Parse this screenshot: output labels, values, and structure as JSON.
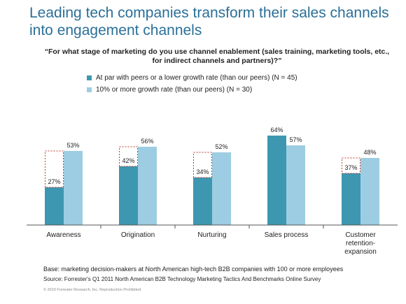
{
  "title": "Leading tech companies transform their sales channels into engagement channels",
  "question": "“For what stage of marketing do you use channel enablement (sales training, marketing tools, etc., for indirect channels and partners)?”",
  "legend": [
    {
      "label": "At par with peers or a lower growth rate (than our peers) (N = 45)",
      "color": "#3d97b1"
    },
    {
      "label": "10% or more growth rate (than our peers) (N = 30)",
      "color": "#9dcde2"
    }
  ],
  "chart_data": {
    "type": "bar",
    "categories": [
      "Awareness",
      "Origination",
      "Nurturing",
      "Sales process",
      "Customer retention-expansion"
    ],
    "category_lines": [
      [
        "Awareness"
      ],
      [
        "Origination"
      ],
      [
        "Nurturing"
      ],
      [
        "Sales process"
      ],
      [
        "Customer",
        "retention-",
        "expansion"
      ]
    ],
    "series": [
      {
        "name": "At par with peers or a lower growth rate (than our peers) (N = 45)",
        "values": [
          27,
          42,
          34,
          64,
          37
        ],
        "labels": [
          "27%",
          "42%",
          "34%",
          "64%",
          "37%"
        ],
        "color": "#3d97b1"
      },
      {
        "name": "10% or more growth rate (than our peers) (N = 30)",
        "values": [
          53,
          56,
          52,
          57,
          48
        ],
        "labels": [
          "53%",
          "56%",
          "52%",
          "57%",
          "48%"
        ],
        "color": "#9dcde2"
      }
    ],
    "gap_highlight_categories": [
      0,
      1,
      2,
      4
    ],
    "ylim": [
      0,
      70
    ],
    "grid": false
  },
  "footer": {
    "base": "Base: marketing decision-makers at North American high-tech B2B companies with 100 or more employees",
    "source": "Source: Forrester's Q1 2011 North American B2B Technology Marketing Tactics And Benchmarks Online Survey",
    "copyright": "© 2010 Forrester Research, Inc. Reproduction Prohibited"
  }
}
